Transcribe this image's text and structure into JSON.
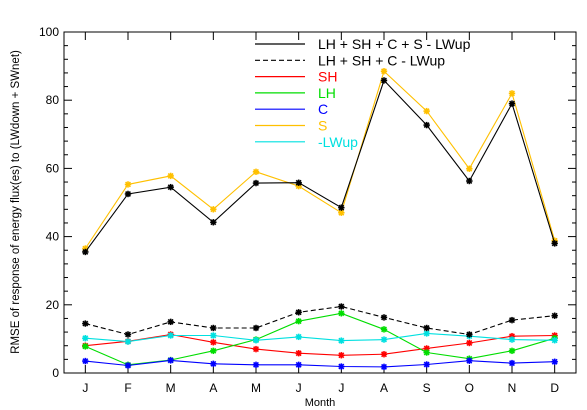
{
  "chart_data": {
    "type": "line",
    "title": "",
    "xlabel": "Month",
    "ylabel": "RMSE of response of energy flux(es) to (LWdown + SWnet)",
    "categories": [
      "J",
      "F",
      "M",
      "A",
      "M",
      "J",
      "J",
      "A",
      "S",
      "O",
      "N",
      "D"
    ],
    "ylim": [
      0,
      100
    ],
    "yticks": [
      0,
      20,
      40,
      60,
      80,
      100
    ],
    "grid": false,
    "legend_position": "top-right",
    "series": [
      {
        "name": "LH + SH + C + S - LWup",
        "color": "#000000",
        "dash": "solid",
        "values": [
          35.5,
          52.5,
          54.5,
          44.2,
          55.7,
          55.8,
          48.5,
          85.8,
          72.7,
          56.3,
          79.0,
          38.0
        ]
      },
      {
        "name": "LH + SH + C - LWup",
        "color": "#000000",
        "dash": "dashed",
        "values": [
          14.5,
          11.3,
          15.0,
          13.2,
          13.2,
          17.8,
          19.5,
          16.3,
          13.2,
          11.3,
          15.5,
          16.8
        ]
      },
      {
        "name": "SH",
        "color": "#ff0000",
        "dash": "solid",
        "values": [
          8.0,
          9.3,
          11.3,
          9.0,
          7.0,
          5.8,
          5.2,
          5.5,
          7.2,
          8.8,
          10.8,
          11.0
        ]
      },
      {
        "name": "LH",
        "color": "#00dd00",
        "dash": "solid",
        "values": [
          7.8,
          2.4,
          3.8,
          6.5,
          9.8,
          15.2,
          17.5,
          12.8,
          6.0,
          4.2,
          6.5,
          10.2
        ]
      },
      {
        "name": "C",
        "color": "#0000ff",
        "dash": "solid",
        "values": [
          3.5,
          2.2,
          3.7,
          2.7,
          2.4,
          2.4,
          1.9,
          1.8,
          2.5,
          3.6,
          2.9,
          3.3
        ]
      },
      {
        "name": "S",
        "color": "#ffc000",
        "dash": "solid",
        "values": [
          36.5,
          55.3,
          57.8,
          48.0,
          59.0,
          54.8,
          47.0,
          88.5,
          76.8,
          59.9,
          82.0,
          38.8
        ]
      },
      {
        "name": "-LWup",
        "color": "#00e0e0",
        "dash": "solid",
        "values": [
          10.2,
          9.2,
          11.0,
          11.0,
          9.6,
          10.6,
          9.5,
          9.8,
          11.6,
          10.8,
          9.8,
          9.6
        ]
      }
    ]
  }
}
